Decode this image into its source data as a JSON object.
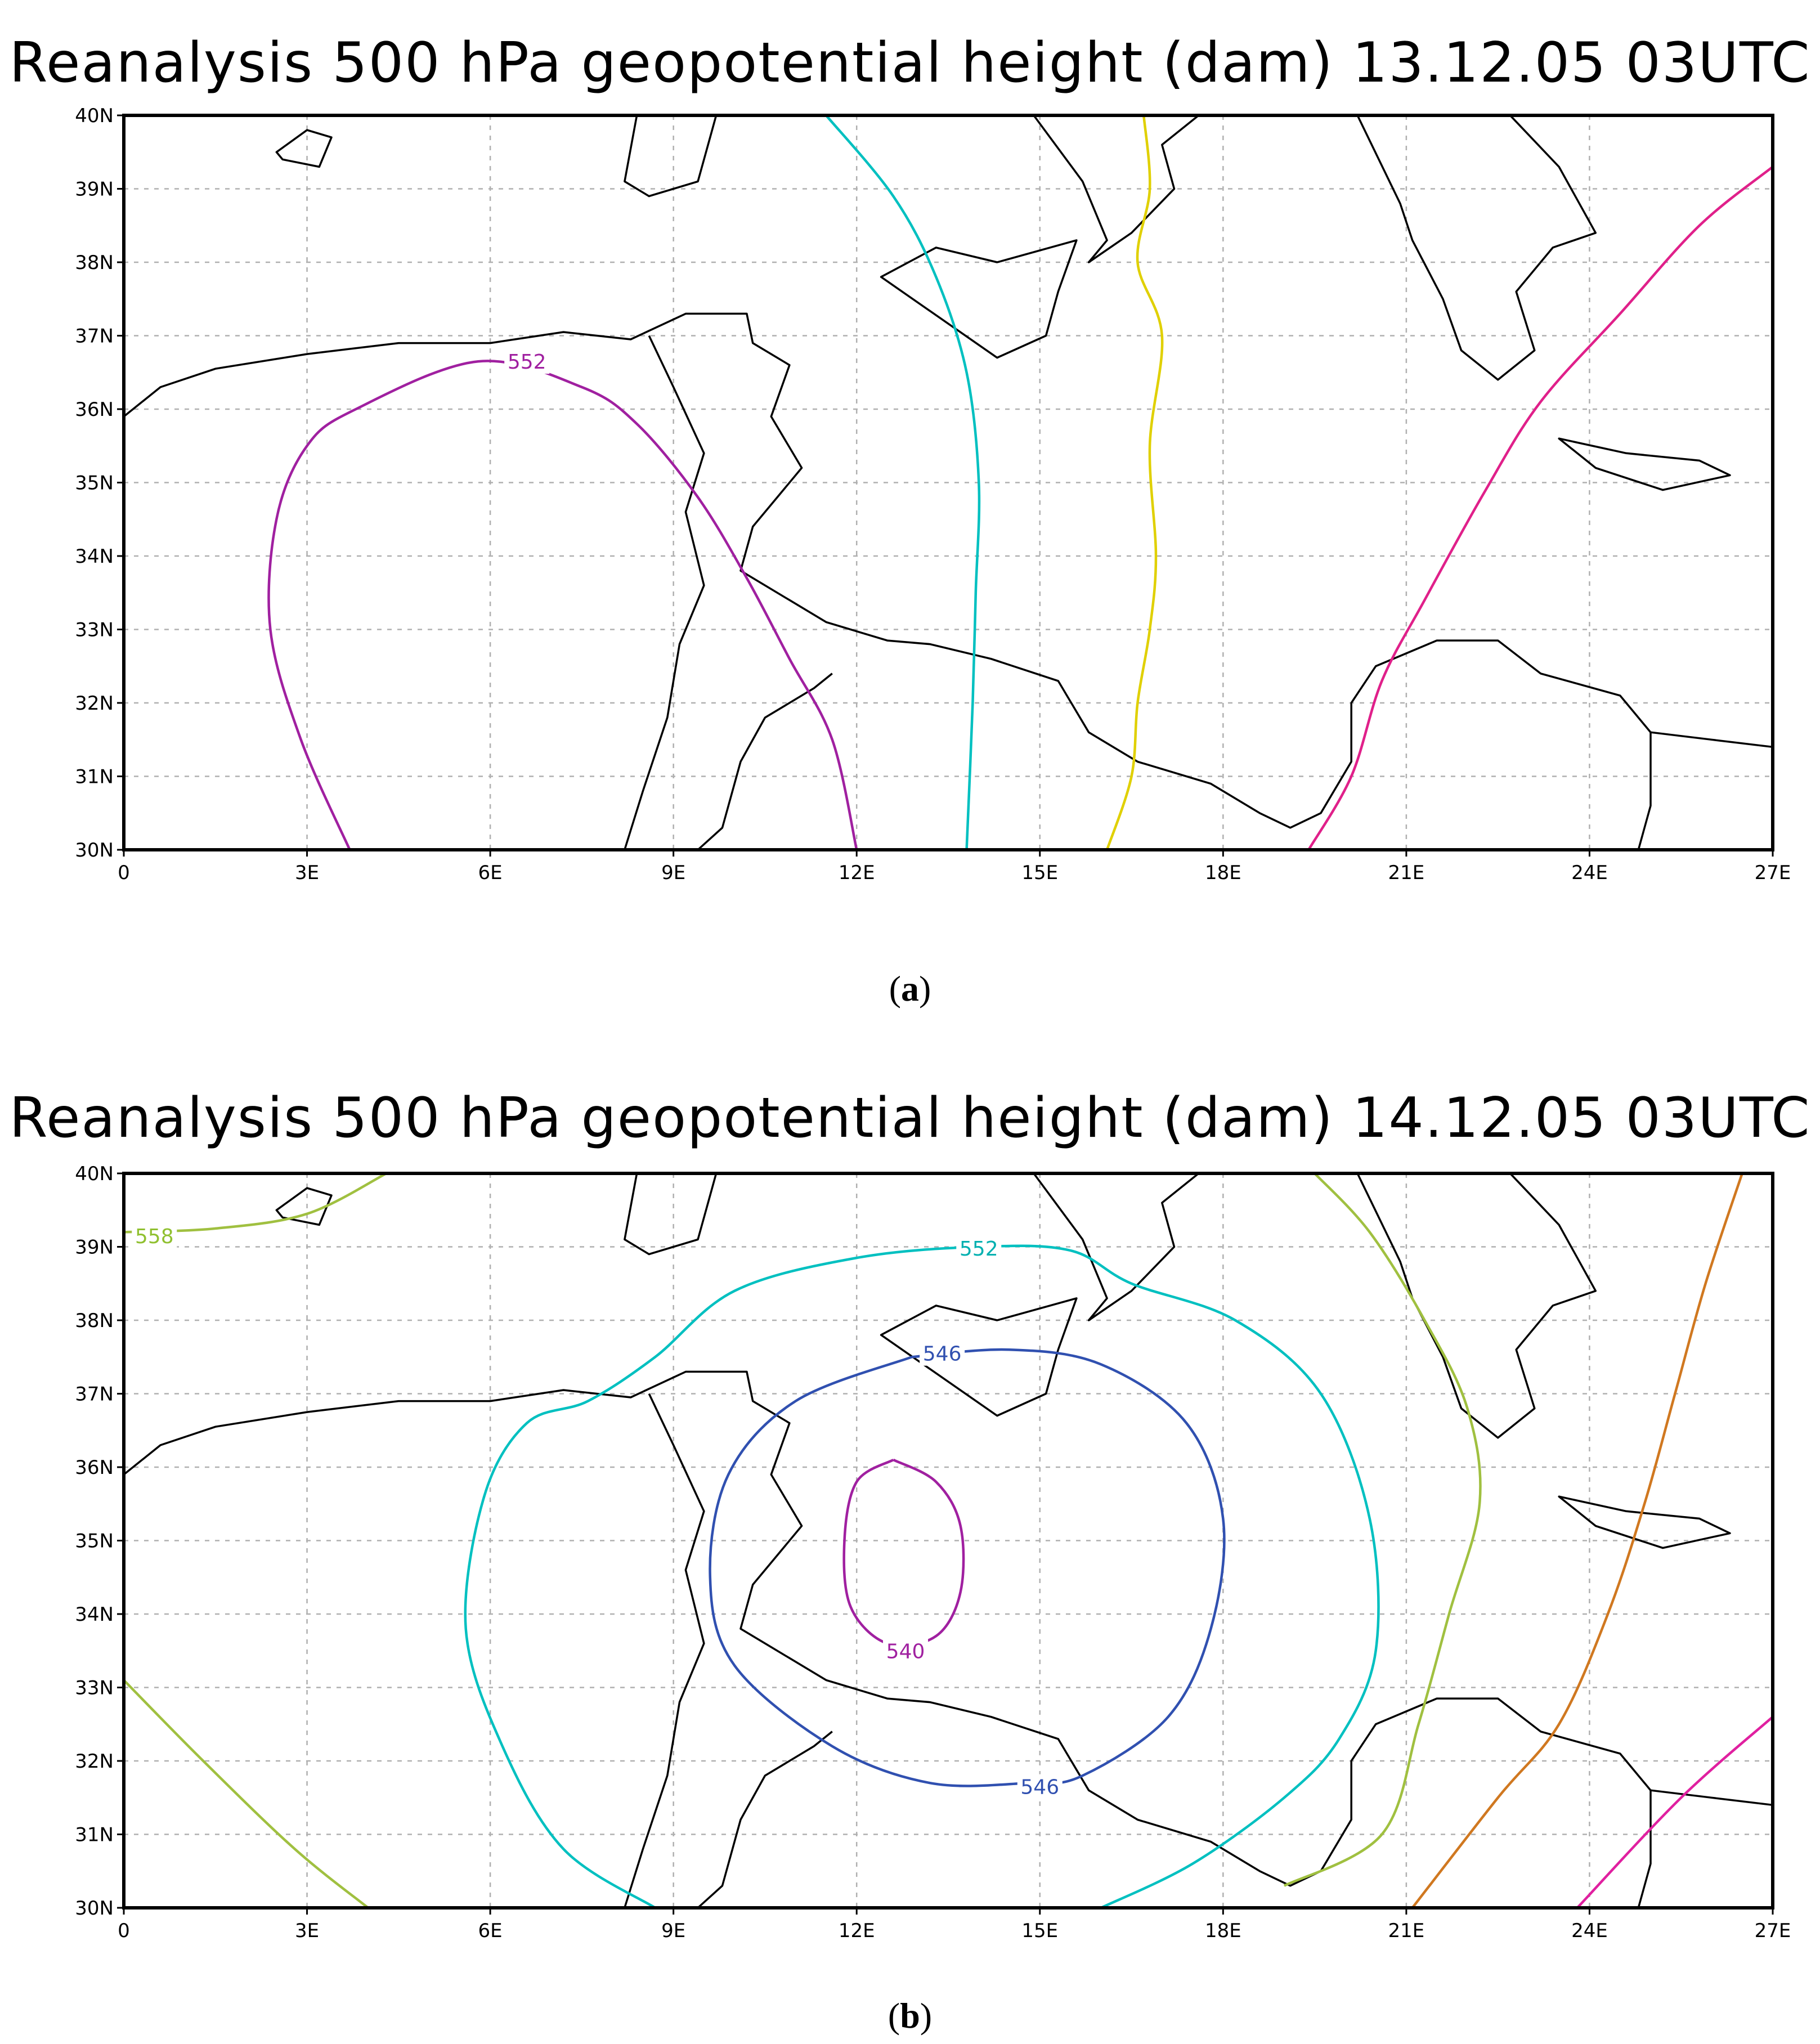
{
  "panels": [
    {
      "title": "Reanalysis 500 hPa geopotential height (dam) 13.12.05 03UTC",
      "caption_letter": "a",
      "x_ticks": [
        "0",
        "3E",
        "6E",
        "9E",
        "12E",
        "15E",
        "18E",
        "21E",
        "24E",
        "27E"
      ],
      "y_ticks": [
        "40N",
        "39N",
        "38N",
        "37N",
        "36N",
        "35N",
        "34N",
        "33N",
        "32N",
        "31N",
        "30N"
      ],
      "contour_labels": [
        {
          "text": "552",
          "color": "#a020a0"
        }
      ],
      "contours": [
        {
          "color": "#a020a0",
          "points": [
            [
              3.7,
              30
            ],
            [
              2.9,
              31.5
            ],
            [
              2.4,
              33
            ],
            [
              2.5,
              34.5
            ],
            [
              3,
              35.5
            ],
            [
              3.8,
              36
            ],
            [
              5.8,
              36.65
            ],
            [
              7.5,
              36.3
            ],
            [
              8.4,
              35.8
            ],
            [
              9.4,
              34.8
            ],
            [
              10.2,
              33.7
            ],
            [
              10.9,
              32.6
            ],
            [
              11.6,
              31.5
            ],
            [
              12,
              30
            ]
          ]
        },
        {
          "color": "#00c0c0",
          "points": [
            [
              11.5,
              40
            ],
            [
              12.6,
              38.9
            ],
            [
              13.3,
              37.8
            ],
            [
              13.8,
              36.5
            ],
            [
              14,
              35
            ],
            [
              13.95,
              33.5
            ],
            [
              13.9,
              32
            ],
            [
              13.8,
              30
            ]
          ]
        },
        {
          "color": "#e0d000",
          "points": [
            [
              16.7,
              40
            ],
            [
              16.8,
              39
            ],
            [
              16.6,
              38
            ],
            [
              17,
              37
            ],
            [
              16.8,
              35.5
            ],
            [
              16.9,
              34
            ],
            [
              16.8,
              33
            ],
            [
              16.6,
              32
            ],
            [
              16.5,
              31
            ],
            [
              16.1,
              30
            ]
          ]
        },
        {
          "color": "#e0208a",
          "points": [
            [
              19.4,
              30
            ],
            [
              20.1,
              31
            ],
            [
              20.6,
              32.3
            ],
            [
              21.3,
              33.4
            ],
            [
              22.3,
              34.9
            ],
            [
              23.2,
              36.1
            ],
            [
              24.5,
              37.3
            ],
            [
              25.8,
              38.5
            ],
            [
              27,
              39.3
            ]
          ]
        }
      ]
    },
    {
      "title": "Reanalysis 500 hPa geopotential height (dam) 14.12.05 03UTC",
      "caption_letter": "b",
      "x_ticks": [
        "0",
        "3E",
        "6E",
        "9E",
        "12E",
        "15E",
        "18E",
        "21E",
        "24E",
        "27E"
      ],
      "y_ticks": [
        "40N",
        "39N",
        "38N",
        "37N",
        "36N",
        "35N",
        "34N",
        "33N",
        "32N",
        "31N",
        "30N"
      ],
      "contour_labels": [
        {
          "text": "558",
          "color": "#90c030"
        },
        {
          "text": "552",
          "color": "#00b0b0"
        },
        {
          "text": "546",
          "color": "#3050b0"
        },
        {
          "text": "546",
          "color": "#3050b0"
        },
        {
          "text": "540",
          "color": "#a020a0"
        }
      ],
      "contours": [
        {
          "color": "#a0c040",
          "points": [
            [
              0,
              39.2
            ],
            [
              1.5,
              39.25
            ],
            [
              3,
              39.45
            ],
            [
              4.3,
              40
            ]
          ]
        },
        {
          "color": "#a0c040",
          "points": [
            [
              0,
              33.1
            ],
            [
              1.3,
              32
            ],
            [
              2.8,
              30.8
            ],
            [
              4,
              30
            ]
          ]
        },
        {
          "color": "#00c0c0",
          "points": [
            [
              8.7,
              30
            ],
            [
              7.2,
              30.8
            ],
            [
              6.2,
              32.2
            ],
            [
              5.6,
              33.8
            ],
            [
              5.9,
              35.6
            ],
            [
              6.6,
              36.6
            ],
            [
              7.6,
              36.9
            ],
            [
              8.7,
              37.5
            ],
            [
              10,
              38.4
            ],
            [
              12,
              38.85
            ],
            [
              14,
              39
            ],
            [
              15.5,
              38.95
            ],
            [
              16.5,
              38.5
            ],
            [
              18.2,
              38
            ],
            [
              19.6,
              37
            ],
            [
              20.4,
              35.3
            ],
            [
              20.5,
              33.5
            ],
            [
              19.9,
              32.3
            ],
            [
              19,
              31.5
            ],
            [
              17.5,
              30.6
            ],
            [
              16,
              30
            ]
          ]
        },
        {
          "color": "#3050b0",
          "points": [
            [
              12.9,
              37.5
            ],
            [
              14.5,
              37.6
            ],
            [
              16,
              37.4
            ],
            [
              17.4,
              36.6
            ],
            [
              18,
              35.3
            ],
            [
              17.8,
              33.8
            ],
            [
              17.1,
              32.6
            ],
            [
              15.7,
              31.8
            ],
            [
              14.8,
              31.7
            ],
            [
              13.2,
              31.7
            ],
            [
              11.6,
              32.2
            ],
            [
              10,
              33.3
            ],
            [
              9.6,
              34.5
            ],
            [
              9.9,
              35.9
            ],
            [
              11,
              36.9
            ],
            [
              12.9,
              37.5
            ]
          ]
        },
        {
          "color": "#a020a0",
          "points": [
            [
              12.6,
              36.1
            ],
            [
              12,
              35.8
            ],
            [
              11.8,
              35
            ],
            [
              11.9,
              34.1
            ],
            [
              12.5,
              33.6
            ],
            [
              13.3,
              33.7
            ],
            [
              13.7,
              34.3
            ],
            [
              13.7,
              35.2
            ],
            [
              13.3,
              35.8
            ],
            [
              12.6,
              36.1
            ]
          ]
        },
        {
          "color": "#a0c040",
          "points": [
            [
              19,
              30.3
            ],
            [
              20.6,
              31
            ],
            [
              21.2,
              32.5
            ],
            [
              21.7,
              34
            ],
            [
              22.2,
              35.5
            ],
            [
              22,
              36.8
            ],
            [
              21.3,
              38
            ],
            [
              20.4,
              39.2
            ],
            [
              19.5,
              40
            ]
          ]
        },
        {
          "color": "#d07820",
          "points": [
            [
              21.1,
              30
            ],
            [
              22.5,
              31.5
            ],
            [
              23.5,
              32.5
            ],
            [
              24.3,
              34
            ],
            [
              24.9,
              35.5
            ],
            [
              25.4,
              37
            ],
            [
              25.9,
              38.5
            ],
            [
              26.5,
              40
            ]
          ]
        },
        {
          "color": "#e020a0",
          "points": [
            [
              23.8,
              30
            ],
            [
              25.5,
              31.5
            ],
            [
              27,
              32.6
            ]
          ]
        }
      ]
    }
  ]
}
